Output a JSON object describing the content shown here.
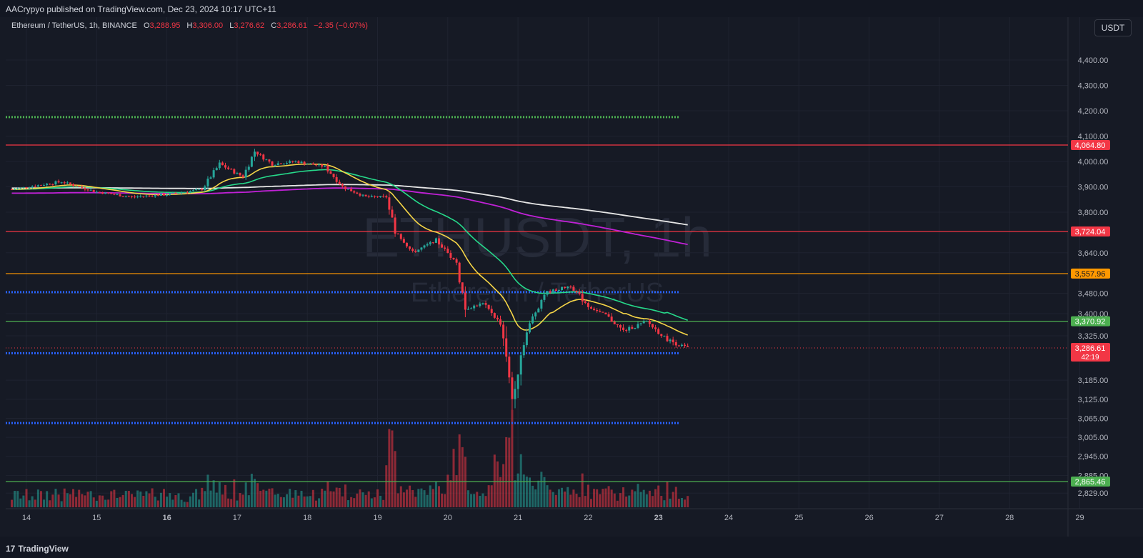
{
  "header": {
    "published": "AACrypyo published on TradingView.com, Dec 23, 2024 10:17 UTC+11"
  },
  "legend": {
    "symbol": "Ethereum / TetherUS, 1h, BINANCE",
    "open_label": "O",
    "open": "3,288.95",
    "high_label": "H",
    "high": "3,306.00",
    "low_label": "L",
    "low": "3,276.62",
    "close_label": "C",
    "close": "3,286.61",
    "change": "−2.35 (−0.07%)"
  },
  "currency_button": "USDT",
  "watermark": {
    "ticker": "ETHUSDT, 1h",
    "name": "Ethereum / TetherUS"
  },
  "footer": {
    "logo": "17",
    "brand": "TradingView"
  },
  "colors": {
    "background": "#161a25",
    "up": "#26a69a",
    "down": "#f23645",
    "ema_fast": "#f5d547",
    "ema_mid": "#26d98a",
    "ma_purple": "#c021d6",
    "ma_white": "#e6e6e6"
  },
  "chart_data": {
    "type": "candlestick",
    "title": "ETHUSDT, 1h",
    "y_axis_labels": [
      "4,400.00",
      "4,300.00",
      "4,200.00",
      "4,100.00",
      "4,000.00",
      "3,900.00",
      "3,800.00",
      "3,640.00",
      "3,480.00",
      "3,400.00",
      "3,325.00",
      "3,185.00",
      "3,125.00",
      "3,065.00",
      "3,005.00",
      "2,945.00",
      "2,885.00",
      "2,829.00"
    ],
    "x_axis_labels": [
      {
        "label": "14",
        "bold": false
      },
      {
        "label": "15",
        "bold": false
      },
      {
        "label": "16",
        "bold": true
      },
      {
        "label": "17",
        "bold": false
      },
      {
        "label": "18",
        "bold": false
      },
      {
        "label": "19",
        "bold": false
      },
      {
        "label": "20",
        "bold": false
      },
      {
        "label": "21",
        "bold": false
      },
      {
        "label": "22",
        "bold": false
      },
      {
        "label": "23",
        "bold": true
      },
      {
        "label": "24",
        "bold": false
      },
      {
        "label": "25",
        "bold": false
      },
      {
        "label": "26",
        "bold": false
      },
      {
        "label": "27",
        "bold": false
      },
      {
        "label": "28",
        "bold": false
      },
      {
        "label": "29",
        "bold": false
      }
    ],
    "horizontal_levels": [
      {
        "price": "4,064.80",
        "color": "#f23645",
        "style": "solid"
      },
      {
        "price": "3,724.04",
        "color": "#f23645",
        "style": "solid"
      },
      {
        "price": "3,557.96",
        "color": "#ff9800",
        "style": "solid"
      },
      {
        "price": "3,370.92",
        "color": "#4caf50",
        "style": "solid"
      },
      {
        "price": "2,865.46",
        "color": "#4caf50",
        "style": "solid"
      },
      {
        "price": "4,175",
        "color": "#4caf50",
        "style": "dotted"
      },
      {
        "price": "3,485",
        "color": "#2962ff",
        "style": "dotted"
      },
      {
        "price": "3,270",
        "color": "#2962ff",
        "style": "dotted"
      },
      {
        "price": "3,050",
        "color": "#2962ff",
        "style": "dotted"
      }
    ],
    "last_price": {
      "price": "3,286.61",
      "countdown": "42:19"
    },
    "candles_close_path": [
      [
        "2024-12-13 19:00",
        3890
      ],
      [
        "2024-12-14 12:00",
        3920
      ],
      [
        "2024-12-15 00:00",
        3880
      ],
      [
        "2024-12-15 12:00",
        3860
      ],
      [
        "2024-12-16 00:00",
        3870
      ],
      [
        "2024-12-16 12:00",
        3890
      ],
      [
        "2024-12-16 18:00",
        3990
      ],
      [
        "2024-12-17 02:00",
        3940
      ],
      [
        "2024-12-17 06:00",
        4040
      ],
      [
        "2024-12-17 12:00",
        3990
      ],
      [
        "2024-12-17 20:00",
        4000
      ],
      [
        "2024-12-18 06:00",
        3980
      ],
      [
        "2024-12-18 12:00",
        3900
      ],
      [
        "2024-12-18 20:00",
        3860
      ],
      [
        "2024-12-19 03:00",
        3860
      ],
      [
        "2024-12-19 06:00",
        3730
      ],
      [
        "2024-12-19 12:00",
        3640
      ],
      [
        "2024-12-19 20:00",
        3690
      ],
      [
        "2024-12-20 03:00",
        3600
      ],
      [
        "2024-12-20 06:00",
        3420
      ],
      [
        "2024-12-20 12:00",
        3440
      ],
      [
        "2024-12-20 18:00",
        3360
      ],
      [
        "2024-12-20 22:00",
        3130
      ],
      [
        "2024-12-21 02:00",
        3310
      ],
      [
        "2024-12-21 09:00",
        3480
      ],
      [
        "2024-12-21 18:00",
        3510
      ],
      [
        "2024-12-22 00:00",
        3430
      ],
      [
        "2024-12-22 06:00",
        3390
      ],
      [
        "2024-12-22 12:00",
        3340
      ],
      [
        "2024-12-22 20:00",
        3370
      ],
      [
        "2024-12-23 02:00",
        3320
      ],
      [
        "2024-12-23 06:00",
        3300
      ],
      [
        "2024-12-23 10:00",
        3287
      ]
    ]
  }
}
